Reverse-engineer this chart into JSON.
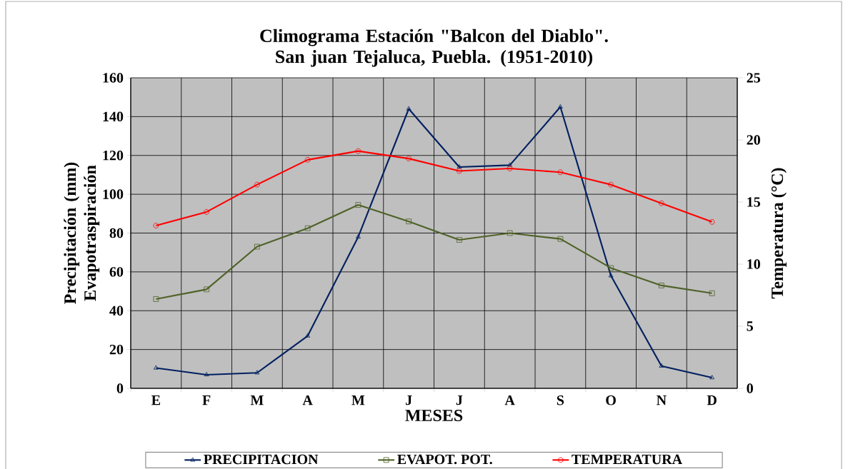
{
  "chart_data": {
    "type": "line",
    "title": "Climograma Estación \"Balcon del Diablo\". San juan Tejaluca, Puebla. (1951-2010)",
    "xlabel": "MESES",
    "ylabel": "Precipitación (mm) Evapotraspiración",
    "y2label": "Temperatura  (°C)",
    "categories": [
      "E",
      "F",
      "M",
      "A",
      "M",
      "J",
      "J",
      "A",
      "S",
      "O",
      "N",
      "D"
    ],
    "series": [
      {
        "name": "PRECIPITACION",
        "color": "#002060",
        "marker": "triangle",
        "values": [
          10.5,
          7,
          8,
          27,
          78,
          144,
          114,
          115,
          145,
          58,
          11.5,
          5.5
        ]
      },
      {
        "name": "EVAPOT. POT.",
        "color": "#4f6228",
        "marker": "square",
        "values": [
          46,
          51,
          73,
          82.5,
          94.5,
          86,
          76.5,
          80,
          77,
          62,
          53,
          49
        ]
      },
      {
        "name": "TEMPERATURA",
        "color": "#ff0000",
        "marker": "circle",
        "axis": "y2",
        "values": [
          13.1,
          14.2,
          16.4,
          18.4,
          19.1,
          18.5,
          17.5,
          17.7,
          17.4,
          16.4,
          14.9,
          13.4
        ]
      }
    ],
    "ylim": [
      0,
      160
    ],
    "yticks": [
      0,
      20,
      40,
      60,
      80,
      100,
      120,
      140,
      160
    ],
    "y2lim": [
      0,
      25
    ],
    "y2ticks": [
      0,
      5,
      10,
      15,
      20,
      25
    ],
    "grid": true,
    "legend": "bottom",
    "line_style": "solid"
  }
}
